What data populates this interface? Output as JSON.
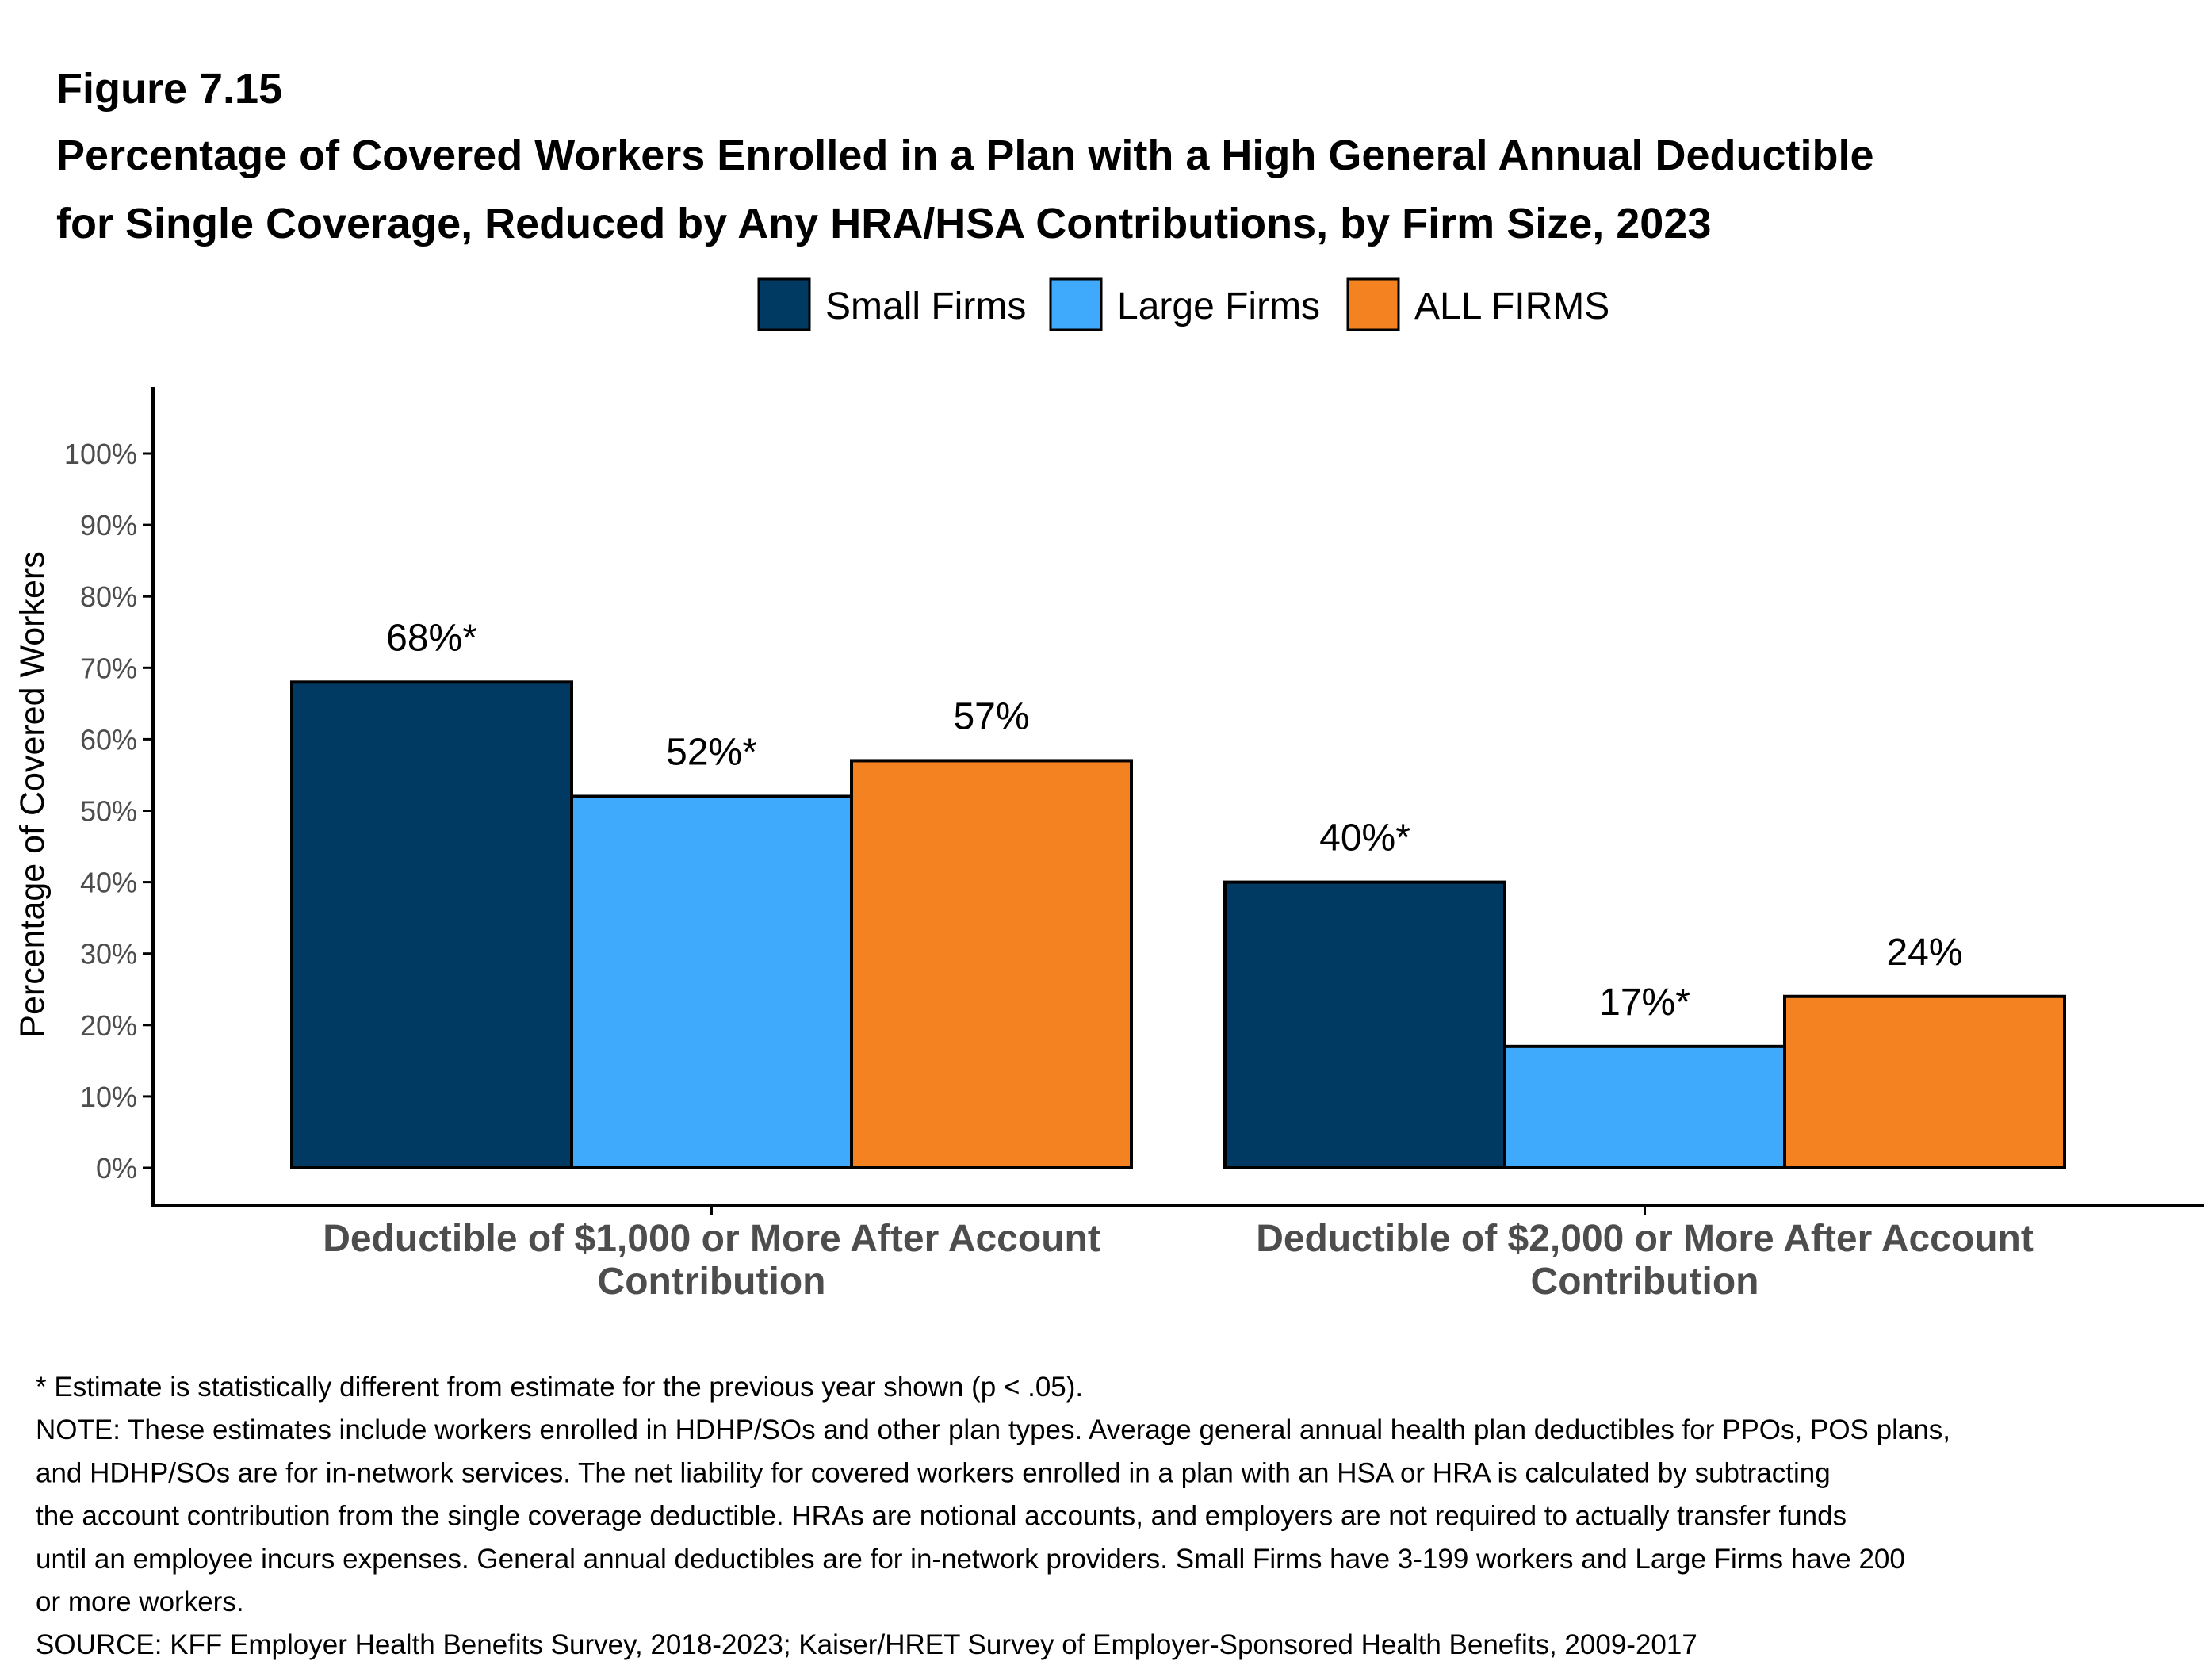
{
  "chart_data": {
    "type": "bar",
    "figure_label": "Figure 7.15",
    "title_lines": [
      "Percentage of Covered Workers Enrolled in a Plan with a High General Annual Deductible",
      "for Single Coverage, Reduced by Any HRA/HSA Contributions, by Firm Size, 2023"
    ],
    "ylabel": "Percentage of Covered Workers",
    "xlabel": "",
    "ylim": [
      0,
      100
    ],
    "yticks": [
      "0%",
      "10%",
      "20%",
      "30%",
      "40%",
      "50%",
      "60%",
      "70%",
      "80%",
      "90%",
      "100%"
    ],
    "legend_position": "top",
    "categories": [
      [
        "Deductible of $1,000 or More After Account",
        "Contribution"
      ],
      [
        "Deductible of $2,000 or More After Account",
        "Contribution"
      ]
    ],
    "series": [
      {
        "name": "Small Firms",
        "color": "#003A63",
        "values": [
          68,
          40
        ],
        "labels": [
          "68%*",
          "40%*"
        ]
      },
      {
        "name": "Large Firms",
        "color": "#3FA9FB",
        "values": [
          52,
          17
        ],
        "labels": [
          "52%*",
          "17%*"
        ]
      },
      {
        "name": "ALL FIRMS",
        "color": "#F58220",
        "values": [
          57,
          24
        ],
        "labels": [
          "57%",
          "24%"
        ]
      }
    ]
  },
  "notes": [
    "* Estimate is statistically different from estimate for the previous year shown (p < .05).",
    "NOTE: These estimates include workers enrolled in HDHP/SOs and other plan types. Average general annual health plan deductibles for PPOs, POS plans,",
    "and HDHP/SOs are for in-network services. The net liability for covered workers enrolled in a plan with an HSA or HRA is calculated by subtracting",
    "the account contribution from the single coverage deductible. HRAs are notional accounts, and employers are not required to actually transfer funds",
    "until an employee incurs expenses. General annual deductibles are for in-network providers. Small Firms have 3-199 workers and Large Firms have 200",
    "or more workers.",
    "SOURCE: KFF Employer Health Benefits Survey, 2018-2023; Kaiser/HRET Survey of Employer-Sponsored Health Benefits, 2009-2017"
  ]
}
